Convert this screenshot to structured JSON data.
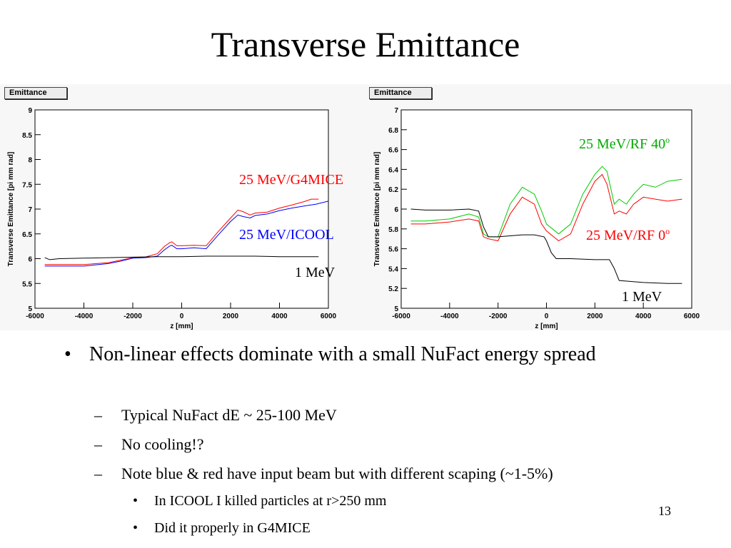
{
  "slide": {
    "title": "Transverse Emittance",
    "page_number": "13"
  },
  "bullets": {
    "main": "Non-linear effects dominate with a small NuFact energy spread",
    "marker_main": "•",
    "marker_sub": "–",
    "marker_subsub": "•",
    "sub": [
      "Typical NuFact dE ~ 25-100 MeV",
      "No cooling!?",
      "Note blue & red have input beam but with different scaping (~1-5%)"
    ],
    "subsub": [
      "In ICOOL I killed particles at r>250 mm",
      "Did it properly in G4MICE"
    ]
  },
  "chart_data": [
    {
      "type": "line",
      "panel_label": "Emittance",
      "xlabel": "z [mm]",
      "ylabel": "Transverse Emittance [pi mm rad]",
      "xlim": [
        -6000,
        6000
      ],
      "ylim": [
        5,
        9
      ],
      "x_ticks": [
        -6000,
        -4000,
        -2000,
        0,
        2000,
        4000,
        6000
      ],
      "x_tick_labels": [
        "-6000",
        "-4000",
        "-2000",
        "0",
        "2000",
        "4000",
        "6000"
      ],
      "y_ticks": [
        5,
        5.5,
        6,
        6.5,
        7,
        7.5,
        8,
        8.5,
        9
      ],
      "y_tick_labels": [
        "5",
        "5.5",
        "6",
        "6.5",
        "7",
        "7.5",
        "8",
        "8.5",
        "9"
      ],
      "series": [
        {
          "name": "25 MeV/G4MICE",
          "color": "#ff0000",
          "x": [
            -5600,
            -5000,
            -4000,
            -3000,
            -2500,
            -2000,
            -1500,
            -1000,
            -700,
            -500,
            -400,
            -200,
            0,
            500,
            1000,
            1500,
            2000,
            2300,
            2500,
            2800,
            3000,
            3500,
            4000,
            4500,
            5000,
            5300,
            5600
          ],
          "y": [
            5.88,
            5.88,
            5.88,
            5.92,
            5.97,
            6.02,
            6.03,
            6.1,
            6.25,
            6.32,
            6.34,
            6.26,
            6.26,
            6.27,
            6.26,
            6.55,
            6.82,
            6.98,
            6.95,
            6.88,
            6.92,
            6.94,
            7.02,
            7.08,
            7.15,
            7.2,
            7.2
          ]
        },
        {
          "name": "25 MeV/ICOOL",
          "color": "#0000ff",
          "x": [
            -5600,
            -5000,
            -4000,
            -3000,
            -2500,
            -2000,
            -1500,
            -1000,
            -700,
            -500,
            -400,
            -200,
            0,
            500,
            1000,
            1500,
            2000,
            2300,
            2500,
            2800,
            3000,
            3500,
            4000,
            4500,
            5000,
            5500,
            6000
          ],
          "y": [
            5.85,
            5.85,
            5.85,
            5.9,
            5.95,
            6.01,
            6.02,
            6.05,
            6.18,
            6.25,
            6.27,
            6.2,
            6.2,
            6.22,
            6.2,
            6.48,
            6.75,
            6.88,
            6.85,
            6.82,
            6.87,
            6.9,
            6.97,
            7.02,
            7.06,
            7.1,
            7.16
          ]
        },
        {
          "name": "1 MeV",
          "color": "#000000",
          "x": [
            -5600,
            -5400,
            -5000,
            -4000,
            -3000,
            -2000,
            -1000,
            0,
            1000,
            2000,
            3000,
            4000,
            5000,
            5600
          ],
          "y": [
            6.02,
            5.98,
            6.0,
            6.01,
            6.02,
            6.03,
            6.04,
            6.04,
            6.05,
            6.05,
            6.05,
            6.04,
            6.04,
            6.04
          ]
        }
      ],
      "annotations": [
        {
          "text": "25 MeV/G4MICE",
          "color": "#ff0000"
        },
        {
          "text": "25 MeV/ICOOL",
          "color": "#0000ff"
        },
        {
          "text": "1 MeV",
          "color": "#000000"
        }
      ]
    },
    {
      "type": "line",
      "panel_label": "Emittance",
      "xlabel": "z [mm]",
      "ylabel": "Transverse Emittance [pi mm rad]",
      "xlim": [
        -6000,
        6000
      ],
      "ylim": [
        5,
        7
      ],
      "x_ticks": [
        -6000,
        -4000,
        -2000,
        0,
        2000,
        4000,
        6000
      ],
      "x_tick_labels": [
        "-6000",
        "-4000",
        "-2000",
        "0",
        "2000",
        "4000",
        "6000"
      ],
      "y_ticks": [
        5,
        5.2,
        5.4,
        5.6,
        5.8,
        6,
        6.2,
        6.4,
        6.6,
        6.8,
        7
      ],
      "y_tick_labels": [
        "5",
        "5.2",
        "5.4",
        "5.6",
        "5.8",
        "6",
        "6.2",
        "6.4",
        "6.6",
        "6.8",
        "7"
      ],
      "series": [
        {
          "name": "25 MeV/RF 40",
          "color": "#00cc00",
          "x": [
            -5600,
            -5000,
            -4000,
            -3200,
            -2800,
            -2600,
            -2400,
            -2000,
            -1500,
            -1000,
            -500,
            -200,
            0,
            500,
            1000,
            1500,
            2000,
            2300,
            2500,
            2800,
            3000,
            3300,
            3600,
            4000,
            4500,
            5000,
            5600
          ],
          "y": [
            5.88,
            5.88,
            5.9,
            5.95,
            5.92,
            5.75,
            5.72,
            5.72,
            6.05,
            6.22,
            6.15,
            5.98,
            5.85,
            5.75,
            5.85,
            6.15,
            6.35,
            6.43,
            6.38,
            6.05,
            6.1,
            6.05,
            6.15,
            6.25,
            6.22,
            6.28,
            6.3
          ]
        },
        {
          "name": "25 MeV/RF 0",
          "color": "#ff0000",
          "x": [
            -5600,
            -5000,
            -4000,
            -3200,
            -2800,
            -2600,
            -2400,
            -2000,
            -1500,
            -1000,
            -500,
            -200,
            0,
            500,
            1000,
            1500,
            2000,
            2300,
            2500,
            2800,
            3000,
            3300,
            3600,
            4000,
            4500,
            5000,
            5600
          ],
          "y": [
            5.85,
            5.85,
            5.87,
            5.9,
            5.88,
            5.72,
            5.7,
            5.68,
            5.95,
            6.12,
            6.05,
            5.85,
            5.78,
            5.68,
            5.75,
            6.05,
            6.28,
            6.35,
            6.25,
            5.95,
            5.98,
            5.95,
            6.05,
            6.12,
            6.1,
            6.08,
            6.1
          ]
        },
        {
          "name": "1 MeV",
          "color": "#000000",
          "x": [
            -5600,
            -5000,
            -4000,
            -3200,
            -2800,
            -2600,
            -2400,
            -2000,
            -1500,
            -1000,
            -500,
            -100,
            0,
            200,
            400,
            1000,
            2000,
            2600,
            2800,
            3000,
            3500,
            4000,
            5000,
            5600
          ],
          "y": [
            6.0,
            5.99,
            5.99,
            6.0,
            5.98,
            5.82,
            5.72,
            5.72,
            5.73,
            5.74,
            5.74,
            5.72,
            5.68,
            5.56,
            5.5,
            5.5,
            5.49,
            5.49,
            5.4,
            5.28,
            5.27,
            5.26,
            5.25,
            5.25
          ]
        }
      ],
      "annotations": [
        {
          "text": "25 MeV/RF 40",
          "sup": "o",
          "color": "#00aa00"
        },
        {
          "text": "25 MeV/RF 0",
          "sup": "o",
          "color": "#ff0000"
        },
        {
          "text": "1 MeV",
          "color": "#000000"
        }
      ]
    }
  ]
}
